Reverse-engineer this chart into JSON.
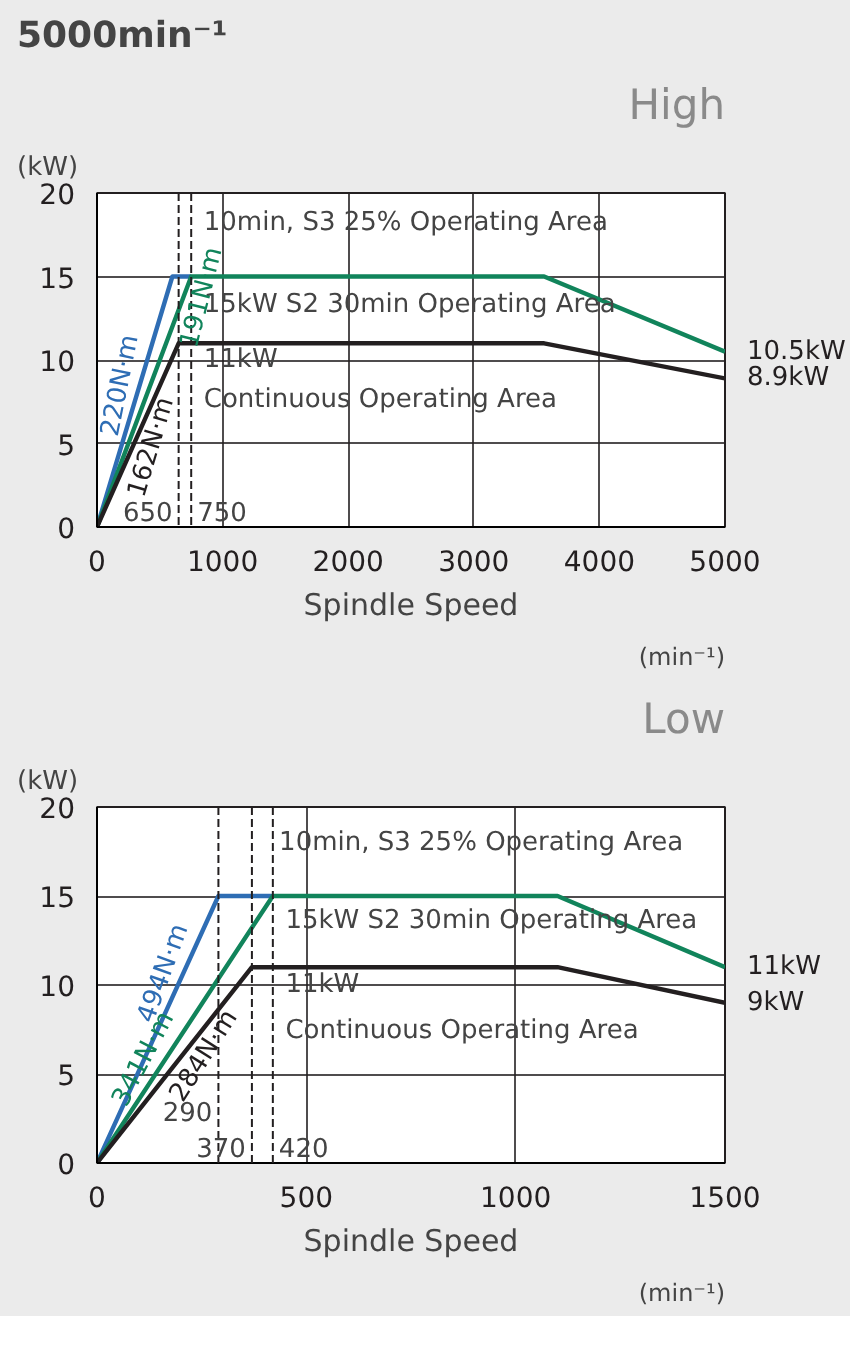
{
  "chart_data": [
    {
      "type": "line",
      "title": "5000min⁻¹",
      "subtitle": "High",
      "xlabel": "Spindle Speed",
      "ylabel": "(kW)",
      "xlim": [
        0,
        5000
      ],
      "ylim": [
        0,
        20
      ],
      "xticks": [
        0,
        1000,
        2000,
        3000,
        4000,
        5000
      ],
      "yticks": [
        0,
        5,
        10,
        15,
        20
      ],
      "grid": true,
      "series": [
        {
          "color": "#2e6db4",
          "x": [
            0,
            600,
            750
          ],
          "values": [
            0,
            15,
            15
          ]
        },
        {
          "color": "#11845b",
          "x": [
            0,
            750,
            3560,
            5000
          ],
          "values": [
            0,
            15,
            15,
            10.5
          ]
        },
        {
          "color": "#231f20",
          "x": [
            0,
            650,
            3560,
            5000
          ],
          "values": [
            0,
            11,
            11,
            8.9
          ]
        }
      ],
      "ref_lines": [
        {
          "axis": "x",
          "value": 650,
          "label": "650",
          "line_style": "dashed"
        },
        {
          "axis": "x",
          "value": 750,
          "label": "750",
          "line_style": "dashed"
        }
      ],
      "annotations": [
        "(min⁻¹)",
        "10min, S3 25% Operating Area",
        "15kW S2 30min Operating Area",
        "11kW",
        "Continuous Operating Area",
        {
          "text": "10.5kW",
          "x": 5000,
          "y": 10.5
        },
        {
          "text": "8.9kW",
          "x": 5000,
          "y": 8.9
        },
        {
          "text": "220N·m",
          "x": 330,
          "y": 8.25
        },
        {
          "text": "191N·m",
          "x": 700,
          "y": 14
        },
        {
          "text": "162N·m",
          "x": 300,
          "y": 5.08
        }
      ]
    },
    {
      "type": "line",
      "subtitle": "Low",
      "xlabel": "Spindle Speed",
      "ylabel": "(kW)",
      "xlim": [
        0,
        1500
      ],
      "ylim": [
        0,
        20
      ],
      "xticks": [
        0,
        500,
        1000,
        1500
      ],
      "yticks": [
        0,
        5,
        10,
        15,
        20
      ],
      "grid": true,
      "series": [
        {
          "color": "#2e6db4",
          "x": [
            0,
            290,
            420
          ],
          "values": [
            0,
            15,
            15
          ]
        },
        {
          "color": "#11845b",
          "x": [
            0,
            420,
            1100,
            1500
          ],
          "values": [
            0,
            15,
            15,
            11
          ]
        },
        {
          "color": "#231f20",
          "x": [
            0,
            370,
            1100,
            1500
          ],
          "values": [
            0,
            11,
            11,
            9
          ]
        }
      ],
      "ref_lines": [
        {
          "axis": "x",
          "value": 290,
          "label": "290",
          "line_style": "dashed"
        },
        {
          "axis": "x",
          "value": 370,
          "label": "370",
          "line_style": "dashed"
        },
        {
          "axis": "x",
          "value": 420,
          "label": "420",
          "line_style": "dashed"
        }
      ],
      "annotations": [
        "(min⁻¹)",
        "10min, S3 25% Operating Area",
        "15kW S2 30min Operating Area",
        "11kW",
        "Continuous Operating Area",
        {
          "text": "11kW",
          "x": 1500,
          "y": 11
        },
        {
          "text": "9kW",
          "x": 1500,
          "y": 9
        },
        {
          "text": "494N·m",
          "x": 200,
          "y": 10.3
        },
        {
          "text": "341N·m",
          "x": 150,
          "y": 5.36
        },
        {
          "text": "284N·m",
          "x": 220,
          "y": 6.54
        }
      ]
    }
  ]
}
